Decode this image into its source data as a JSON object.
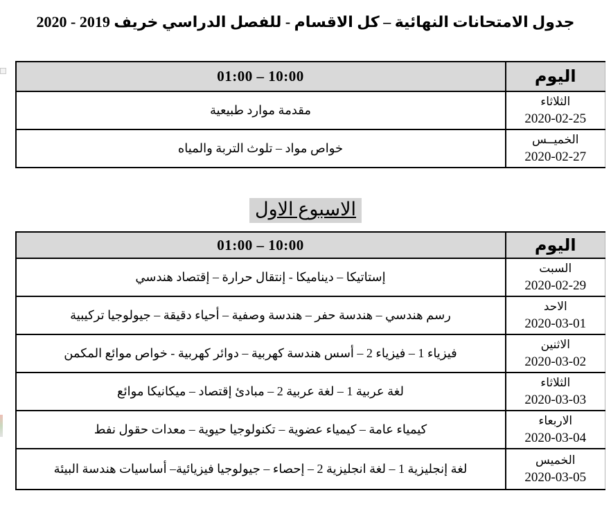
{
  "title": "جدول الامتحانات النهائية – كل الاقسام -  للفصل الدراسي خريف 2019 - 2020",
  "week_heading": "الاسبوع الاول",
  "colors": {
    "header_bg": "#d9d9d9",
    "heading_highlight": "#d4d4d4",
    "border": "#000000"
  },
  "table1": {
    "header": {
      "time": "01:00 – 10:00",
      "day": "اليوم"
    },
    "rows": [
      {
        "subjects": "مقدمة موارد طبيعية",
        "day": "الثلاثاء",
        "date": "2020-02-25"
      },
      {
        "subjects": "خواص مواد – تلوث التربة والمياه",
        "day": "الخميــس",
        "date": "2020-02-27"
      }
    ]
  },
  "table2": {
    "header": {
      "time": "01:00 – 10:00",
      "day": "اليوم"
    },
    "rows": [
      {
        "subjects": "إستاتيكا – ديناميكا  - إنتقال حرارة – إقتصاد هندسي",
        "day": "السبت",
        "date": "2020-02-29"
      },
      {
        "subjects": "رسم هندسي – هندسة حفر – هندسة وصفية – أحياء دقيقة – جيولوجيا تركيبية",
        "day": "الاحد",
        "date": "2020-03-01"
      },
      {
        "subjects": "فيزياء 1 – فيزياء 2 – أسس هندسة كهربية – دوائر كهربية - خواص موائع المكمن",
        "day": "الاثنين",
        "date": "2020-03-02"
      },
      {
        "subjects": "لغة عربية 1 – لغة عربية 2 – مبادئ إقتصاد – ميكانيكا موائع",
        "day": "الثلاثاء",
        "date": "2020-03-03"
      },
      {
        "subjects": "كيمياء عامة – كيمياء عضوية – تكنولوجيا حيوية – معدات حقول نفط",
        "day": "الاربعاء",
        "date": "2020-03-04"
      },
      {
        "subjects": "لغة إنجليزية 1 – لغة انجليزية 2 – إحصاء – جيولوجيا فيزيائية– أساسيات هندسة البيئة",
        "day": "الخميس",
        "date": "2020-03-05"
      }
    ]
  }
}
